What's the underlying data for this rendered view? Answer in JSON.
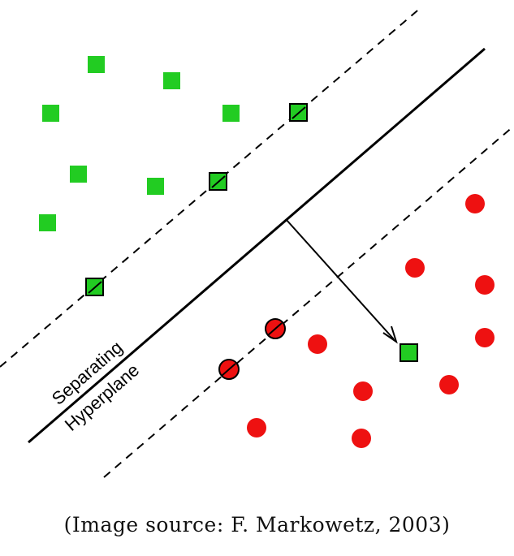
{
  "diagram": {
    "hyperplane_label_line1": "Separating",
    "hyperplane_label_line2": "Hyperplane",
    "colors": {
      "class_square": "#22cc22",
      "class_circle": "#ee1111",
      "stroke": "#000000"
    }
  },
  "caption": "(Image source: F. Markowetz, 2003)"
}
